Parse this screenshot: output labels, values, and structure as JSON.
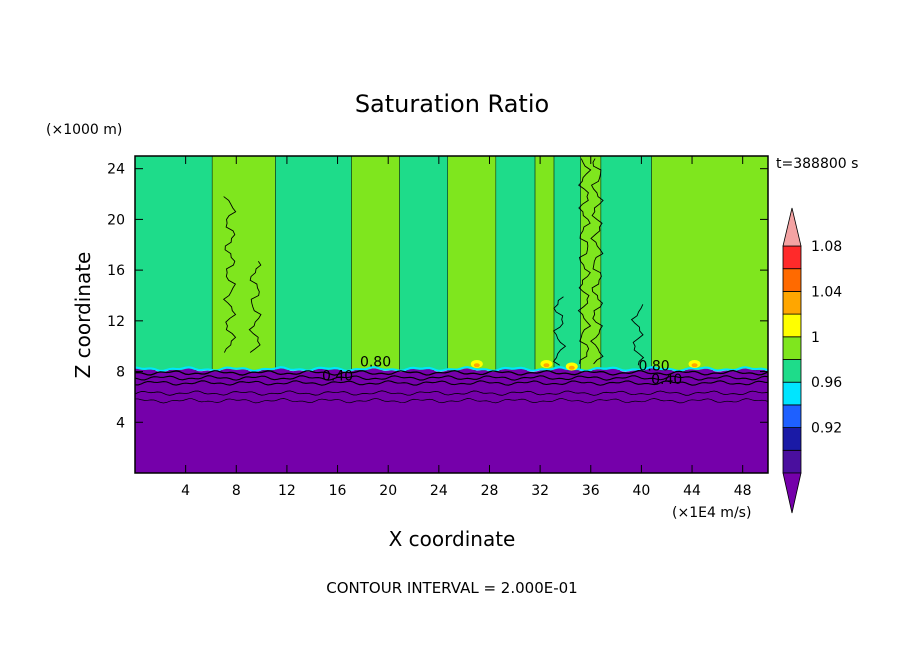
{
  "chart_data": {
    "type": "heatmap",
    "title": "Saturation Ratio",
    "xlabel": "X coordinate",
    "ylabel": "Z coordinate",
    "x_units": "(×1E4 m/s)",
    "y_units": "(×1000 m)",
    "time_label": "t=388800 s",
    "footer": "CONTOUR INTERVAL = 2.000E-01",
    "xlim": [
      0,
      50
    ],
    "ylim": [
      0,
      25
    ],
    "x_ticks": [
      4,
      8,
      12,
      16,
      20,
      24,
      28,
      32,
      36,
      40,
      44,
      48
    ],
    "y_ticks": [
      4,
      8,
      12,
      16,
      20,
      24
    ],
    "contour_labels": [
      {
        "text": "0.80",
        "x": 19,
        "z": 8.4
      },
      {
        "text": "0.40",
        "x": 16,
        "z": 7.3
      },
      {
        "text": "0.80",
        "x": 41,
        "z": 8.1
      },
      {
        "text": "0.40",
        "x": 42,
        "z": 7.0
      }
    ],
    "surface_top_km": 8.1,
    "upper_bands": [
      {
        "x0": 0,
        "x1": 6.1,
        "level": "0.98-1"
      },
      {
        "x0": 6.1,
        "x1": 11.1,
        "level": "1-1.02"
      },
      {
        "x0": 11.1,
        "x1": 17.1,
        "level": "0.98-1"
      },
      {
        "x0": 17.1,
        "x1": 20.9,
        "level": "1-1.02"
      },
      {
        "x0": 20.9,
        "x1": 24.7,
        "level": "0.98-1"
      },
      {
        "x0": 24.7,
        "x1": 28.5,
        "level": "1-1.02"
      },
      {
        "x0": 28.5,
        "x1": 31.6,
        "level": "0.98-1"
      },
      {
        "x0": 31.6,
        "x1": 33.1,
        "level": "1-1.02"
      },
      {
        "x0": 33.1,
        "x1": 35.2,
        "level": "0.98-1"
      },
      {
        "x0": 35.2,
        "x1": 36.8,
        "level": "1-1.02"
      },
      {
        "x0": 36.8,
        "x1": 40.8,
        "level": "0.98-1"
      },
      {
        "x0": 40.8,
        "x1": 50,
        "level": "1-1.02"
      }
    ],
    "colorbar": {
      "labels": [
        "0.92",
        "0.96",
        "1",
        "1.04",
        "1.08"
      ],
      "levels": [
        {
          "label": "0.92",
          "position": 2
        },
        {
          "label": "0.96",
          "position": 4
        },
        {
          "label": "1",
          "position": 6
        },
        {
          "label": "1.04",
          "position": 8
        },
        {
          "label": "1.08",
          "position": 10
        }
      ],
      "colors": [
        "#4a0f9e",
        "#1a1aa6",
        "#1e60ff",
        "#00e5ff",
        "#1edc8a",
        "#7fe61e",
        "#ffff00",
        "#ffa600",
        "#ff6a00",
        "#ff2a2a"
      ],
      "under_color": "#7500aa",
      "over_color": "#f4a3a3"
    },
    "colors": {
      "below": "#7500aa",
      "green_light": "#7fe61e",
      "green": "#1edc8a",
      "cyan": "#00e5ff",
      "yellow": "#ffff00",
      "orange": "#ffa600"
    }
  }
}
